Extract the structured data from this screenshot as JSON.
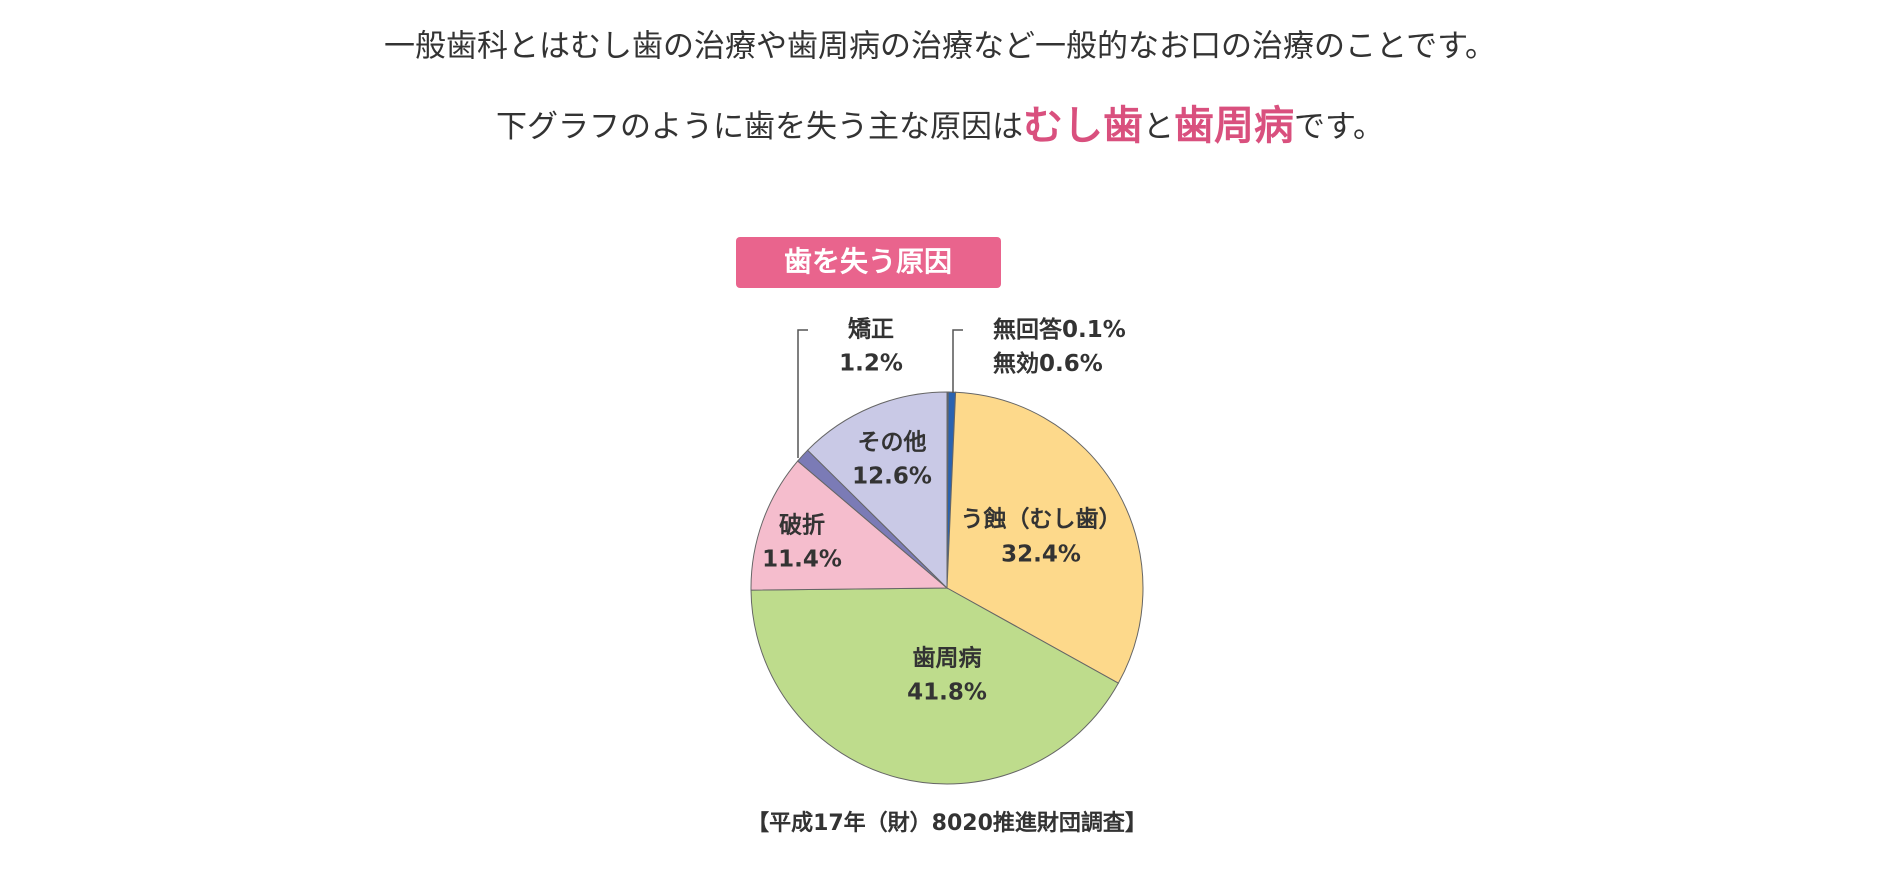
{
  "intro": {
    "line1": "一般歯科とはむし歯の治療や歯周病の治療など一般的なお口の治療のことです。",
    "line2": [
      "下グラフのように歯を失う主な原因は",
      "むし歯",
      "と",
      "歯周病",
      "です。"
    ]
  },
  "chart_data": {
    "type": "pie",
    "title": "歯を失う原因",
    "categories": [
      "無回答",
      "無効",
      "う蝕（むし歯）",
      "歯周病",
      "破折",
      "矯正",
      "その他"
    ],
    "values": [
      0.1,
      0.6,
      32.4,
      41.8,
      11.4,
      1.2,
      12.6
    ],
    "value_labels": [
      "0.1%",
      "0.6%",
      "32.4%",
      "41.8%",
      "11.4%",
      "1.2%",
      "12.6%"
    ],
    "colors": [
      "#173f8a",
      "#2a63b0",
      "#fdd98b",
      "#bedc8c",
      "#f5bdcd",
      "#7b7bb6",
      "#c9c9e6"
    ],
    "source": "【平成17年（財）8020推進財団調査】"
  }
}
